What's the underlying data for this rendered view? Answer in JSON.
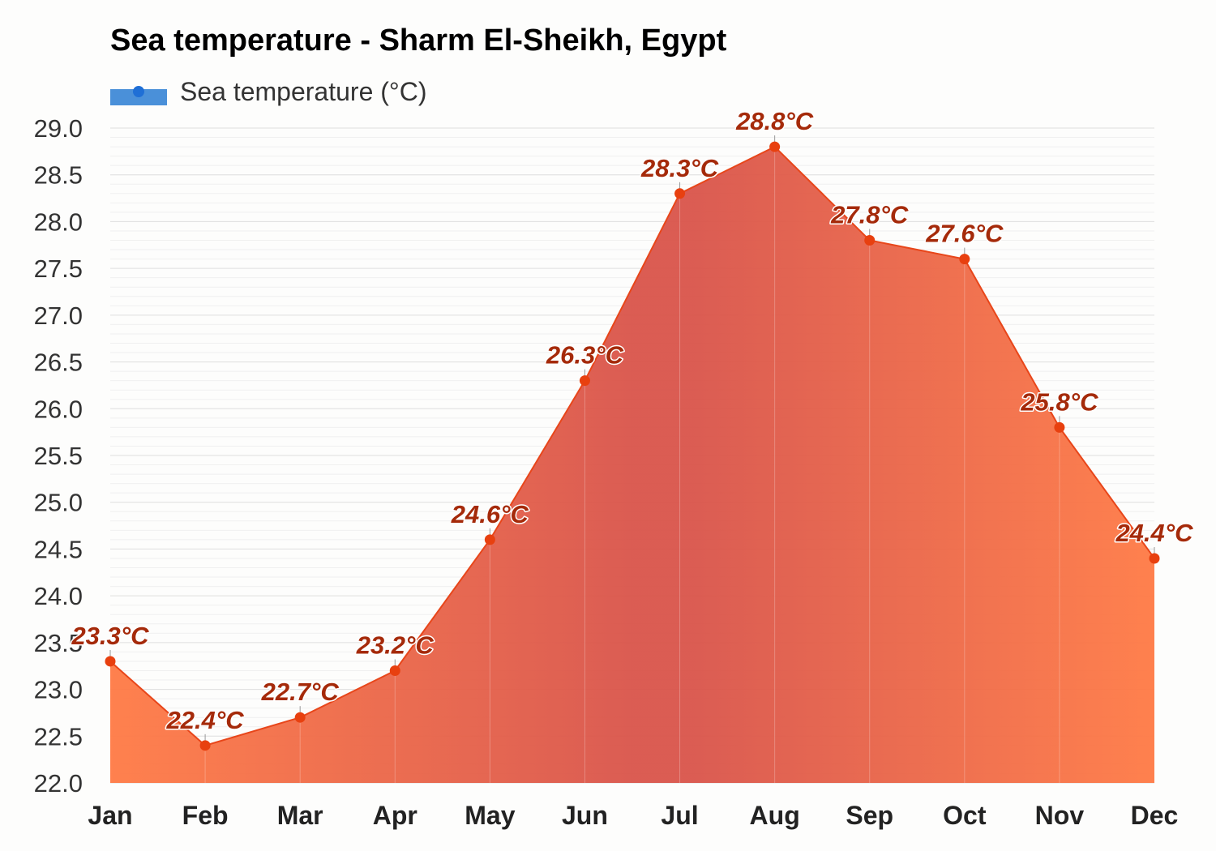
{
  "chart_data": {
    "type": "area",
    "title": "Sea temperature - Sharm El-Sheikh, Egypt",
    "categories": [
      "Jan",
      "Feb",
      "Mar",
      "Apr",
      "May",
      "Jun",
      "Jul",
      "Aug",
      "Sep",
      "Oct",
      "Nov",
      "Dec"
    ],
    "series": [
      {
        "name": "Sea temperature (°C)",
        "values": [
          23.3,
          22.4,
          22.7,
          23.2,
          24.6,
          26.3,
          28.3,
          28.8,
          27.8,
          27.6,
          25.8,
          24.4
        ]
      }
    ],
    "data_labels": [
      "23.3°C",
      "22.4°C",
      "22.7°C",
      "23.2°C",
      "24.6°C",
      "26.3°C",
      "28.3°C",
      "28.8°C",
      "27.8°C",
      "27.6°C",
      "25.8°C",
      "24.4°C"
    ],
    "ylim": [
      22.0,
      29.0
    ],
    "yticks": [
      "22.0",
      "22.5",
      "23.0",
      "23.5",
      "24.0",
      "24.5",
      "25.0",
      "25.5",
      "26.0",
      "26.5",
      "27.0",
      "27.5",
      "28.0",
      "28.5",
      "29.0"
    ],
    "grid": true,
    "legend_position": "top-left",
    "colors": {
      "line": "#e8461a",
      "marker": "#e8400f",
      "fill_warm": "#ff7a45",
      "fill_hot": "#d9544a",
      "legend_swatch": "#4a90d9",
      "legend_dot": "#1f6fd6",
      "label": "#a52a0a"
    }
  }
}
